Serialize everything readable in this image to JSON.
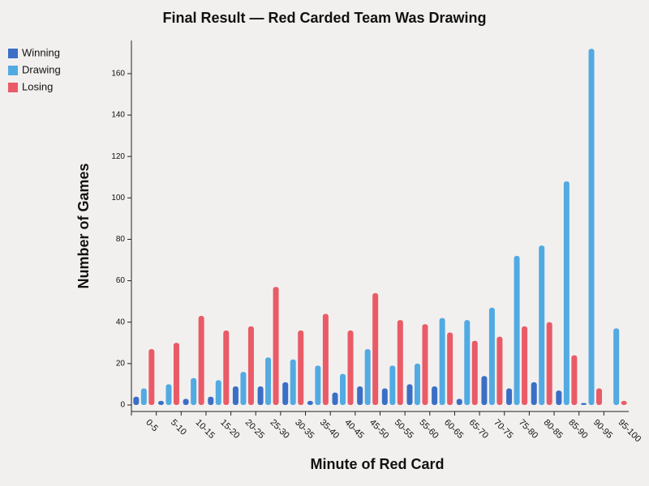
{
  "chart_data": {
    "type": "bar",
    "title": "Final Result — Red Carded Team Was Drawing",
    "x_label": "Minute of Red Card",
    "y_label": "Number of Games",
    "categories": [
      "0-5",
      "5-10",
      "10-15",
      "15-20",
      "20-25",
      "25-30",
      "30-35",
      "35-40",
      "40-45",
      "45-50",
      "50-55",
      "55-60",
      "60-65",
      "65-70",
      "70-75",
      "75-80",
      "80-85",
      "85-90",
      "90-95",
      "95-100"
    ],
    "series": [
      {
        "name": "Winning",
        "color": "#3b6fc6",
        "values": [
          4,
          2,
          3,
          4,
          9,
          9,
          11,
          2,
          6,
          9,
          8,
          10,
          9,
          3,
          14,
          8,
          11,
          7,
          1,
          0
        ]
      },
      {
        "name": "Drawing",
        "color": "#52aae2",
        "values": [
          8,
          10,
          13,
          12,
          16,
          23,
          22,
          19,
          15,
          27,
          19,
          20,
          42,
          41,
          47,
          72,
          77,
          108,
          172,
          37
        ]
      },
      {
        "name": "Losing",
        "color": "#e95b67",
        "values": [
          27,
          30,
          43,
          36,
          38,
          57,
          36,
          44,
          36,
          54,
          41,
          39,
          35,
          31,
          33,
          38,
          40,
          24,
          8,
          2
        ]
      }
    ],
    "ylim": [
      0,
      176
    ],
    "yticks": [
      0,
      20,
      40,
      60,
      80,
      100,
      120,
      140,
      160
    ],
    "legend": "top-left"
  }
}
